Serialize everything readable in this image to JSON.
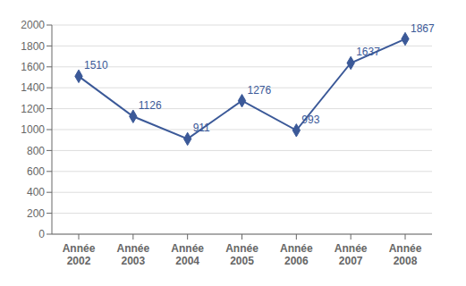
{
  "chart_data": {
    "type": "line",
    "categories": [
      "Année\n2002",
      "Année\n2003",
      "Année\n2004",
      "Année\n2005",
      "Année\n2006",
      "Année\n2007",
      "Année\n2008"
    ],
    "values": [
      1510,
      1126,
      911,
      1276,
      993,
      1637,
      1867
    ],
    "color": "#3B5998",
    "marker": "diamond",
    "ylim": [
      0,
      2000
    ],
    "yticks": [
      0,
      200,
      400,
      600,
      800,
      1000,
      1200,
      1400,
      1600,
      1800,
      2000
    ],
    "grid": true,
    "data_labels": true
  }
}
